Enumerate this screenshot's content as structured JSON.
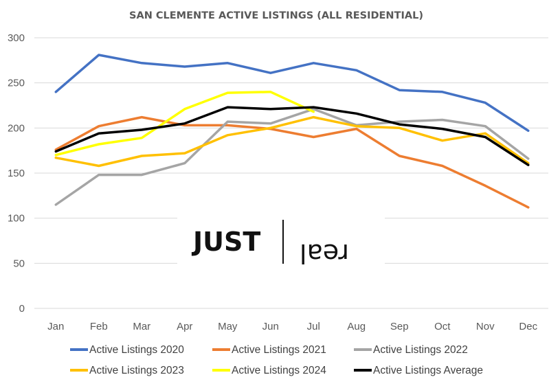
{
  "chart_data": {
    "type": "line",
    "title": "SAN CLEMENTE ACTIVE LISTINGS (ALL RESIDENTIAL)",
    "xlabel": "",
    "ylabel": "",
    "categories": [
      "Jan",
      "Feb",
      "Mar",
      "Apr",
      "May",
      "Jun",
      "Jul",
      "Aug",
      "Sep",
      "Oct",
      "Nov",
      "Dec"
    ],
    "ylim": [
      0,
      300
    ],
    "yticks": [
      0,
      50,
      100,
      150,
      200,
      250,
      300
    ],
    "grid": true,
    "legend_position": "bottom",
    "series": [
      {
        "name": "Active Listings 2020",
        "color": "#4472c4",
        "values": [
          240,
          281,
          272,
          268,
          272,
          261,
          272,
          264,
          242,
          240,
          228,
          197
        ]
      },
      {
        "name": "Active Listings 2021",
        "color": "#ed7d31",
        "values": [
          176,
          202,
          212,
          203,
          203,
          199,
          190,
          199,
          169,
          158,
          136,
          112
        ]
      },
      {
        "name": "Active Listings 2022",
        "color": "#a5a5a5",
        "values": [
          115,
          148,
          148,
          161,
          207,
          205,
          221,
          203,
          207,
          209,
          202,
          166
        ]
      },
      {
        "name": "Active Listings 2023",
        "color": "#ffc000",
        "values": [
          167,
          158,
          169,
          172,
          192,
          200,
          212,
          202,
          200,
          186,
          194,
          161
        ]
      },
      {
        "name": "Active Listings 2024",
        "color": "#ffff00",
        "values": [
          170,
          182,
          189,
          221,
          239,
          240,
          218,
          null,
          null,
          null,
          null,
          null
        ]
      },
      {
        "name": "Active Listings Average",
        "color": "#000000",
        "values": [
          174,
          194,
          198,
          205,
          223,
          221,
          223,
          216,
          204,
          199,
          190,
          159
        ]
      }
    ],
    "watermark": {
      "left": "JUST",
      "right": "real"
    }
  }
}
